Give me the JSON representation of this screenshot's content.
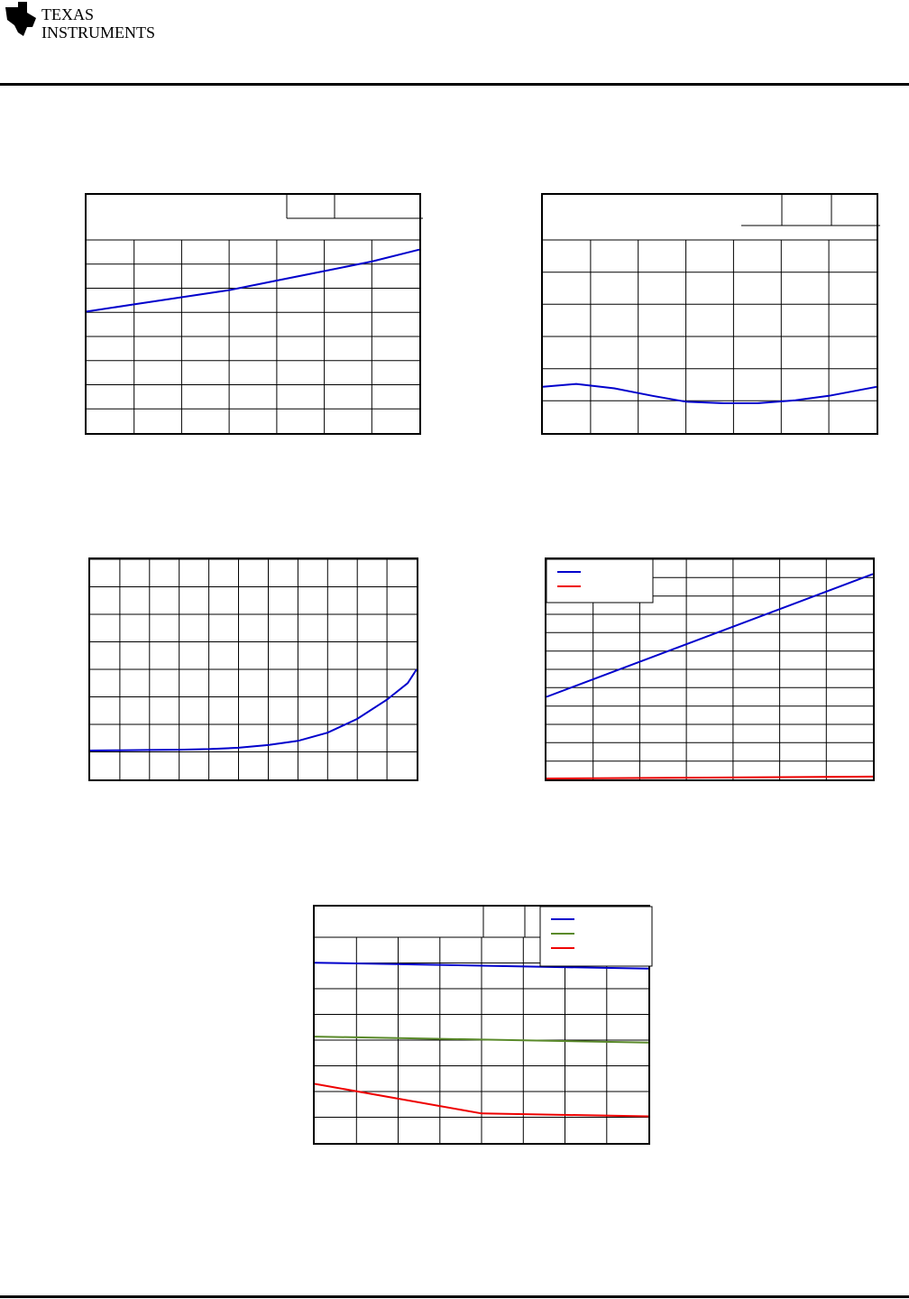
{
  "header": {
    "logo_text_line1": "Texas",
    "logo_text_line2": "Instruments"
  },
  "colors": {
    "blue": "#0000cc",
    "red": "#ee0000",
    "green": "#5a8a2a",
    "grid": "#000000"
  },
  "chart_data": [
    {
      "type": "line",
      "x": [
        0,
        1,
        2,
        3,
        4,
        5,
        6,
        7
      ],
      "xlim": [
        0,
        7
      ],
      "ylim": [
        0,
        10
      ],
      "grid": true,
      "series": [
        {
          "color": "blue",
          "values": [
            5.1,
            5.4,
            5.7,
            6.0,
            6.4,
            6.8,
            7.2,
            7.7
          ]
        }
      ]
    },
    {
      "type": "line",
      "x": [
        0,
        0.7,
        1.5,
        2.3,
        3.0,
        3.8,
        4.5,
        5.3,
        6.0,
        7.0
      ],
      "xlim": [
        0,
        7
      ],
      "ylim": [
        0,
        8
      ],
      "grid": true,
      "series": [
        {
          "color": "blue",
          "values": [
            1.55,
            1.65,
            1.5,
            1.25,
            1.05,
            1.0,
            1.0,
            1.1,
            1.25,
            1.55
          ]
        }
      ]
    },
    {
      "type": "line",
      "x": [
        0,
        1,
        2,
        3,
        4,
        5,
        6,
        7,
        8,
        9,
        10,
        10.7,
        11
      ],
      "xlim": [
        0,
        11
      ],
      "ylim": [
        0,
        8
      ],
      "grid": true,
      "series": [
        {
          "color": "blue",
          "values": [
            1.05,
            1.06,
            1.07,
            1.08,
            1.1,
            1.15,
            1.25,
            1.4,
            1.7,
            2.2,
            2.9,
            3.5,
            4.0
          ]
        }
      ]
    },
    {
      "type": "line",
      "x": [
        0,
        7
      ],
      "xlim": [
        0,
        7
      ],
      "ylim": [
        0,
        12
      ],
      "grid": true,
      "legend": "top-left",
      "series": [
        {
          "color": "blue",
          "values": [
            4.5,
            11.2
          ]
        },
        {
          "color": "red",
          "values": [
            0.05,
            0.15
          ]
        }
      ]
    },
    {
      "type": "line",
      "x": [
        0,
        4,
        8
      ],
      "xlim": [
        0,
        8
      ],
      "ylim": [
        0,
        8
      ],
      "grid": true,
      "legend": "top-right",
      "series": [
        {
          "color": "blue",
          "values": [
            6.1,
            6.0,
            5.9
          ]
        },
        {
          "color": "green",
          "values": [
            3.6,
            3.5,
            3.4
          ]
        },
        {
          "color": "red",
          "values": [
            2.0,
            1.0,
            0.9
          ]
        }
      ]
    }
  ]
}
